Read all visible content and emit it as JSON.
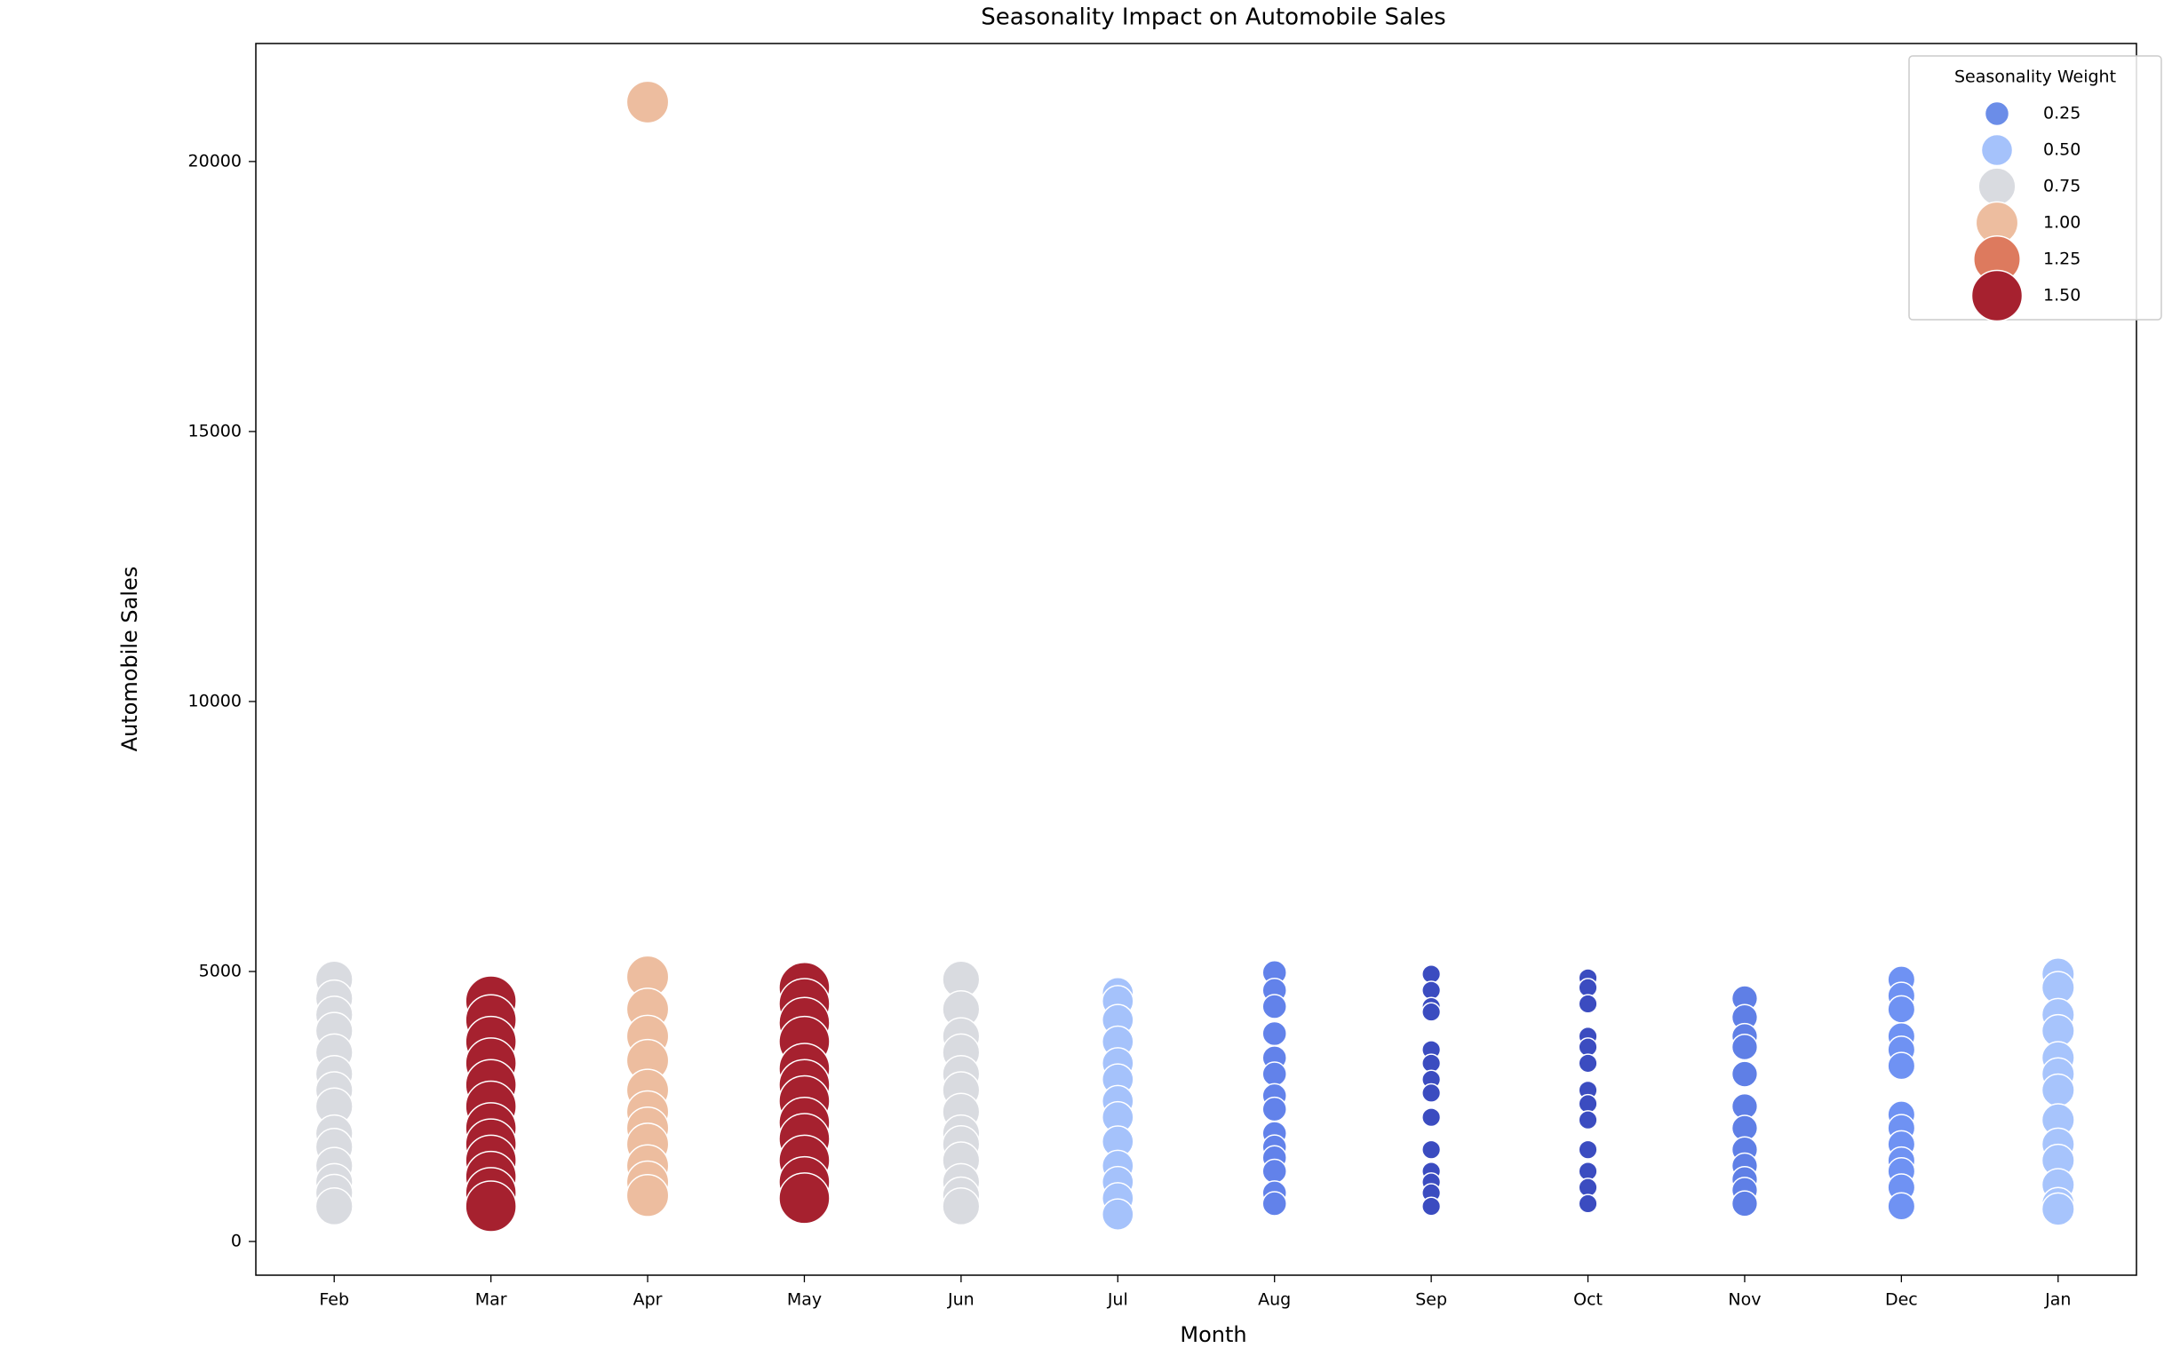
{
  "chart_data": {
    "type": "scatter",
    "title": "Seasonality Impact on Automobile Sales",
    "x_label": "Month",
    "y_label": "Automobile Sales",
    "categories": [
      "Feb",
      "Mar",
      "Apr",
      "May",
      "Jun",
      "Jul",
      "Aug",
      "Sep",
      "Oct",
      "Nov",
      "Dec",
      "Jan"
    ],
    "values": [
      [
        4850,
        4500,
        4200,
        3900,
        3500,
        3100,
        2800,
        2500,
        2000,
        1750,
        1400,
        1100,
        900,
        650
      ],
      [
        4450,
        4100,
        3700,
        3300,
        2900,
        2500,
        2100,
        1800,
        1500,
        1200,
        900,
        650
      ],
      [
        21100,
        4900,
        4300,
        3800,
        3350,
        2800,
        2400,
        2100,
        1800,
        1400,
        1100,
        850
      ],
      [
        4700,
        4400,
        4050,
        3700,
        3200,
        2900,
        2600,
        2200,
        1900,
        1500,
        1100,
        800
      ],
      [
        4850,
        4300,
        3800,
        3500,
        3100,
        2800,
        2400,
        2000,
        1800,
        1500,
        1100,
        850,
        650
      ],
      [
        4600,
        4450,
        4100,
        3700,
        3300,
        3000,
        2600,
        2300,
        1850,
        1400,
        1100,
        800,
        500
      ],
      [
        4980,
        4650,
        4350,
        3850,
        3400,
        3100,
        2700,
        2450,
        2000,
        1750,
        1550,
        1300,
        900,
        700
      ],
      [
        4950,
        4650,
        4350,
        4250,
        3550,
        3300,
        3000,
        2750,
        2300,
        1700,
        1300,
        1100,
        900,
        650
      ],
      [
        4880,
        4700,
        4400,
        3800,
        3600,
        3300,
        2800,
        2550,
        2250,
        1700,
        1300,
        1000,
        700
      ],
      [
        4500,
        4150,
        3800,
        3600,
        3100,
        2500,
        2100,
        1700,
        1400,
        1150,
        950,
        700
      ],
      [
        4850,
        4550,
        4300,
        3800,
        3550,
        3250,
        2350,
        2100,
        1800,
        1500,
        1300,
        1000,
        650
      ],
      [
        4950,
        4700,
        4200,
        3900,
        3400,
        3100,
        2800,
        2250,
        1800,
        1500,
        1050,
        700,
        600
      ]
    ],
    "weights": [
      0.75,
      1.5,
      1.0,
      1.5,
      0.75,
      0.5,
      0.25,
      0.1,
      0.1,
      0.3,
      0.35,
      0.55
    ],
    "colors": [
      "#d9dbe0",
      "#a6212f",
      "#edbd9f",
      "#a6212f",
      "#d9dbe0",
      "#a5c2fb",
      "#6282ea",
      "#3b4cc0",
      "#3b4cc0",
      "#5f7fe6",
      "#6f92f3",
      "#a7c4fc"
    ],
    "ylim": [
      -624,
      22185
    ],
    "yticks": [
      0,
      5000,
      10000,
      15000,
      20000
    ],
    "legend": {
      "title": "Seasonality Weight",
      "position": "upper right",
      "entries": [
        {
          "value": 0.25,
          "label": "0.25",
          "color": "#6b8de8"
        },
        {
          "value": 0.5,
          "label": "0.50",
          "color": "#a5c2fb"
        },
        {
          "value": 0.75,
          "label": "0.75",
          "color": "#d9dbe0"
        },
        {
          "value": 1.0,
          "label": "1.00",
          "color": "#edbd9f"
        },
        {
          "value": 1.25,
          "label": "1.25",
          "color": "#dd7a5e"
        },
        {
          "value": 1.5,
          "label": "1.50",
          "color": "#a6212f"
        }
      ]
    }
  }
}
